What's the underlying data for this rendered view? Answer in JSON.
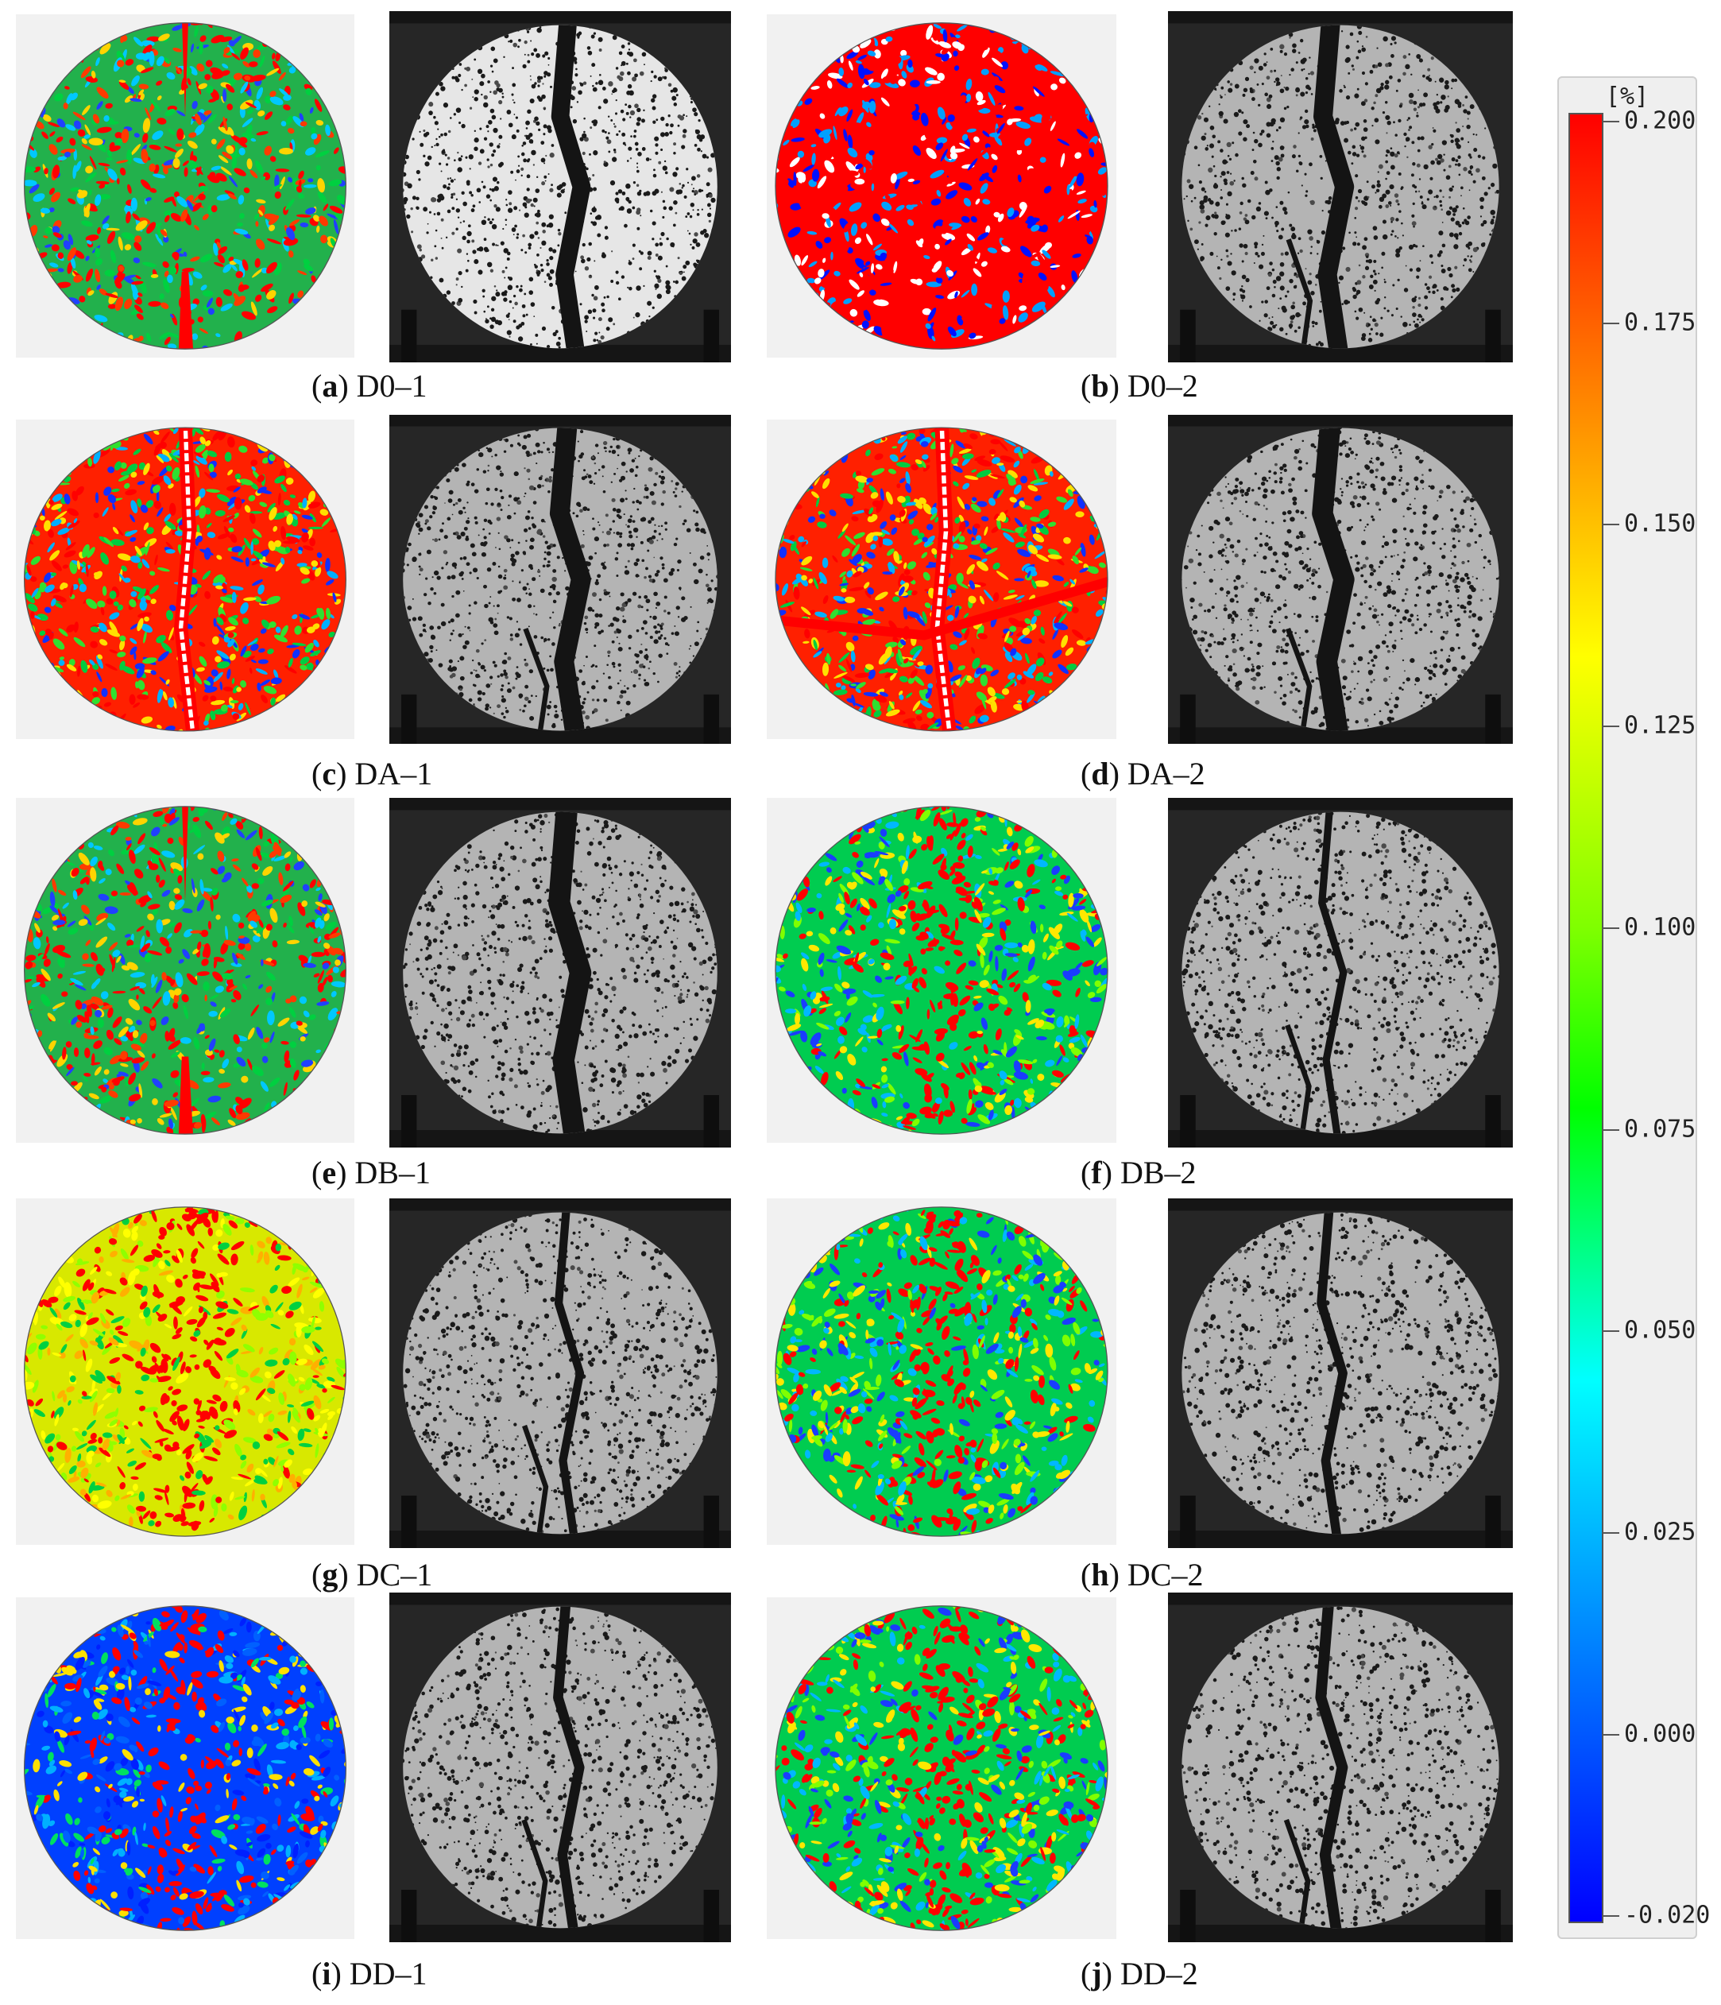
{
  "panels": [
    {
      "letter": "a",
      "label": " D0–1",
      "strain_style": "mixed",
      "photo_style": "bright"
    },
    {
      "letter": "b",
      "label": " D0–2",
      "strain_style": "red",
      "photo_style": "dark"
    },
    {
      "letter": "c",
      "label": " DA–1",
      "strain_style": "cracked",
      "photo_style": "dark"
    },
    {
      "letter": "d",
      "label": " DA–2",
      "strain_style": "cracked",
      "photo_style": "dark"
    },
    {
      "letter": "e",
      "label": " DB–1",
      "strain_style": "mixed",
      "photo_style": "dark"
    },
    {
      "letter": "f",
      "label": " DB–2",
      "strain_style": "band",
      "photo_style": "dark"
    },
    {
      "letter": "g",
      "label": " DC–1",
      "strain_style": "yellow",
      "photo_style": "dark"
    },
    {
      "letter": "h",
      "label": " DC–2",
      "strain_style": "band",
      "photo_style": "dark"
    },
    {
      "letter": "i",
      "label": " DD–1",
      "strain_style": "blue",
      "photo_style": "dark"
    },
    {
      "letter": "j",
      "label": " DD–2",
      "strain_style": "band",
      "photo_style": "dark"
    }
  ],
  "legend": {
    "unit": "[%]",
    "ticks": [
      "0.200",
      "0.175",
      "0.150",
      "0.125",
      "0.100",
      "0.075",
      "0.050",
      "0.025",
      "0.000",
      "-0.020"
    ],
    "colors": {
      "max": "#ff0000",
      "mid": "#00ff00",
      "min": "#0000ff"
    }
  }
}
